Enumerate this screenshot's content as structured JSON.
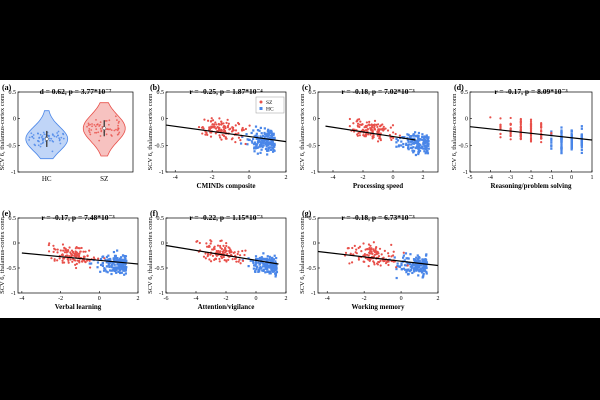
{
  "colors": {
    "hc": "#4a86e8",
    "sz": "#e8504a",
    "fit": "#000000",
    "axis": "#000000"
  },
  "legend": {
    "items": [
      {
        "label": "SZ",
        "color": "#e8504a"
      },
      {
        "label": "HC",
        "color": "#4a86e8"
      }
    ]
  },
  "chart_data": [
    {
      "id": "a",
      "panel_label": "(a)",
      "type": "violin",
      "title": "d = 0.62, p = 3.77*10⁻⁷",
      "ylabel": "SCV 6, thalamus-cortex conn",
      "xlabel": "",
      "categories": [
        "HC",
        "SZ"
      ],
      "ylim": [
        -1,
        0.5
      ],
      "yticks": [
        -1,
        -0.5,
        0,
        0.5
      ],
      "medians": [
        -0.38,
        -0.18
      ],
      "ranges": [
        [
          -0.75,
          0.15
        ],
        [
          -0.7,
          0.3
        ]
      ]
    },
    {
      "id": "b",
      "panel_label": "(b)",
      "type": "scatter",
      "title": "r = -0.25, p = 1.87*10⁻⁴",
      "ylabel": "SCV 6, thalamus-cortex conn",
      "xlabel": "CMINDs composite",
      "xlim": [
        -4.5,
        2
      ],
      "xticks": [
        -4,
        -2,
        0,
        2
      ],
      "ylim": [
        -1,
        0.5
      ],
      "yticks": [
        -1,
        -0.5,
        0,
        0.5
      ],
      "fit": {
        "x": [
          -4.5,
          2
        ],
        "y": [
          -0.12,
          -0.43
        ]
      },
      "legend": true
    },
    {
      "id": "c",
      "panel_label": "(c)",
      "type": "scatter",
      "title": "r = -0.18, p = 7.02*10⁻³",
      "ylabel": "SCV 6, thalamus-cortex conn",
      "xlabel": "Processing speed",
      "xlim": [
        -5,
        3
      ],
      "xticks": [
        -4,
        -2,
        0,
        2
      ],
      "ylim": [
        -1,
        0.5
      ],
      "yticks": [
        -1,
        -0.5,
        0,
        0.5
      ],
      "fit": {
        "x": [
          -4.5,
          1.5
        ],
        "y": [
          -0.14,
          -0.4
        ]
      }
    },
    {
      "id": "d",
      "panel_label": "(d)",
      "type": "scatter",
      "title": "r = -0.17, p = 8.09*10⁻³",
      "ylabel": "SCV 6, thalamus-cortex conn",
      "xlabel": "Reasoning/problem solving",
      "xlim": [
        -5,
        1
      ],
      "xticks": [
        -5,
        -4,
        -3,
        -2,
        -1,
        0,
        1
      ],
      "ylim": [
        -1,
        0.5
      ],
      "yticks": [
        -1,
        -0.5,
        0,
        0.5
      ],
      "fit": {
        "x": [
          -5,
          1
        ],
        "y": [
          -0.15,
          -0.4
        ]
      }
    },
    {
      "id": "e",
      "panel_label": "(e)",
      "type": "scatter",
      "title": "r = -0.17, p = 7.48*10⁻³",
      "ylabel": "SCV 6, thalamus-cortex conn",
      "xlabel": "Verbal learning",
      "xlim": [
        -4.2,
        2
      ],
      "xticks": [
        -4,
        -2,
        0,
        2
      ],
      "ylim": [
        -1,
        0.5
      ],
      "yticks": [
        -1,
        -0.5,
        0,
        0.5
      ],
      "fit": {
        "x": [
          -4,
          2
        ],
        "y": [
          -0.2,
          -0.42
        ]
      }
    },
    {
      "id": "f",
      "panel_label": "(f)",
      "type": "scatter",
      "title": "r = -0.22, p = 1.15*10⁻³",
      "ylabel": "SCV 6, thalamus-cortex conn",
      "xlabel": "Attention/vigilance",
      "xlim": [
        -6,
        2
      ],
      "xticks": [
        -6,
        -4,
        -2,
        0,
        2
      ],
      "ylim": [
        -1,
        0.5
      ],
      "yticks": [
        -1,
        -0.5,
        0,
        0.5
      ],
      "fit": {
        "x": [
          -6,
          1.5
        ],
        "y": [
          -0.05,
          -0.42
        ]
      }
    },
    {
      "id": "g",
      "panel_label": "(g)",
      "type": "scatter",
      "title": "r = -0.18, p = 6.73*10⁻³",
      "ylabel": "SCV 6, thalamus-cortex conn",
      "xlabel": "Working memory",
      "xlim": [
        -4.5,
        2
      ],
      "xticks": [
        -4,
        -2,
        0,
        2
      ],
      "ylim": [
        -1,
        0.5
      ],
      "yticks": [
        -1,
        -0.5,
        0,
        0.5
      ],
      "fit": {
        "x": [
          -4.5,
          2
        ],
        "y": [
          -0.17,
          -0.45
        ]
      }
    }
  ]
}
